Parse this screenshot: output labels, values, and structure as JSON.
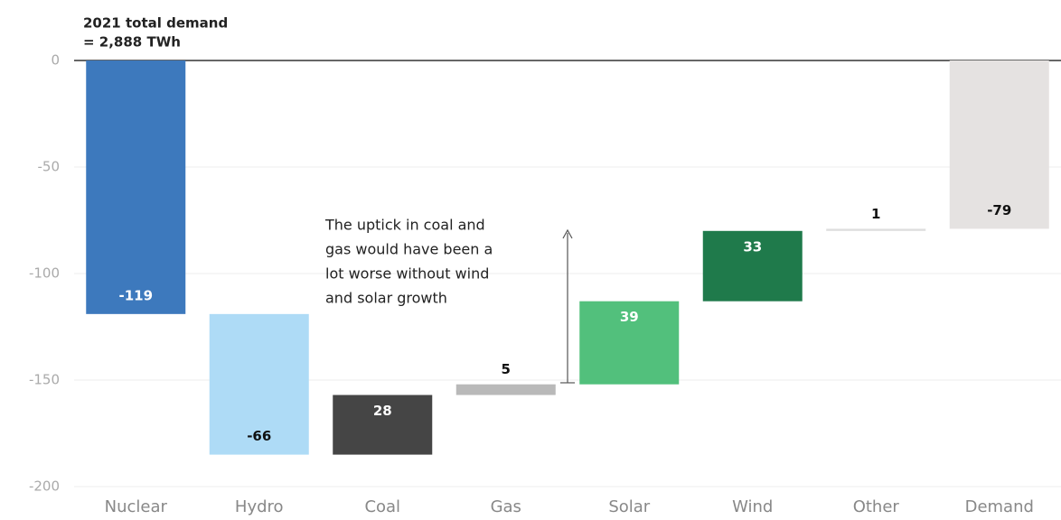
{
  "chart_data": {
    "type": "waterfall",
    "title": [
      "2021 total demand",
      "= 2,888 TWh"
    ],
    "annotation": [
      "The uptick in coal and",
      "gas would have been a",
      "lot worse without wind",
      "and solar growth"
    ],
    "categories": [
      "Nuclear",
      "Hydro",
      "Coal",
      "Gas",
      "Solar",
      "Wind",
      "Other",
      "Demand"
    ],
    "values": [
      -119,
      -66,
      28,
      5,
      39,
      33,
      1,
      -79
    ],
    "colors": [
      "#3d79bd",
      "#aedbf6",
      "#454545",
      "#b9b9b9",
      "#52c07c",
      "#1f7a4b",
      "#dddddd",
      "#e5e2e1"
    ],
    "label_colors": [
      "#ffffff",
      "#111111",
      "#ffffff",
      "#111111",
      "#ffffff",
      "#ffffff",
      "#111111",
      "#111111"
    ],
    "ylim": [
      -200,
      0
    ],
    "yticks": [
      0,
      -50,
      -100,
      -150,
      -200
    ],
    "grid": true
  }
}
